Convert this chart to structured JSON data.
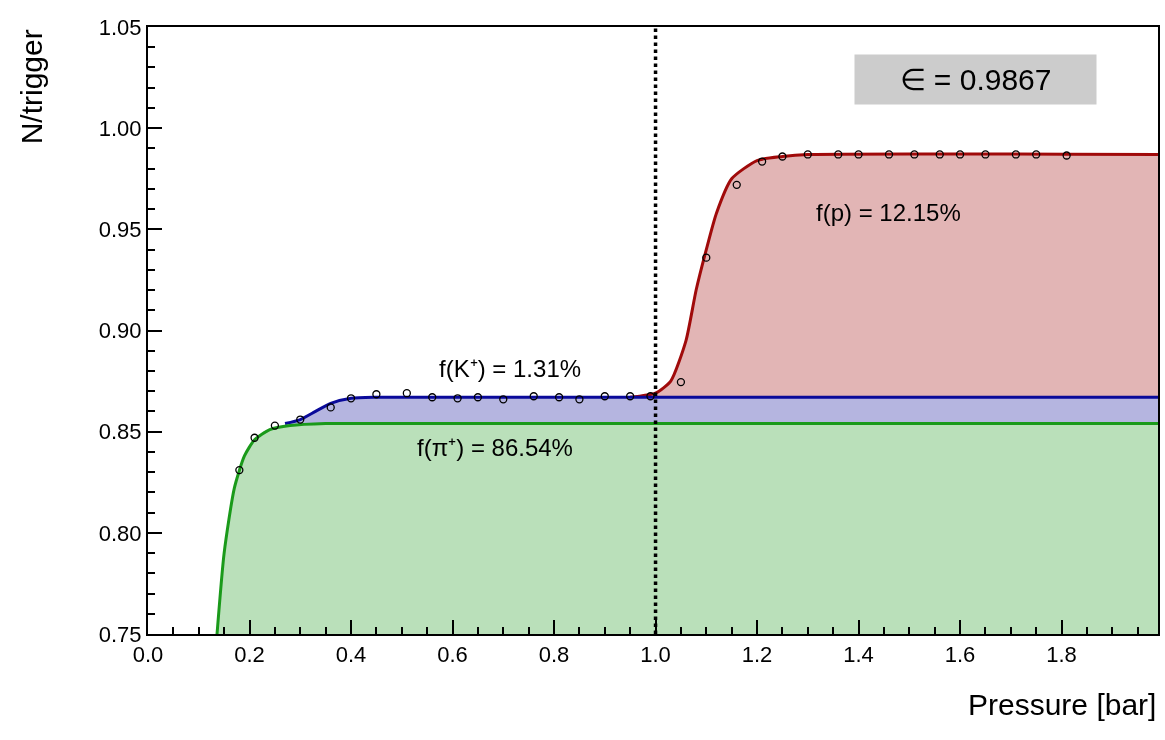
{
  "chart_data": {
    "type": "area",
    "xlabel": "Pressure [bar]",
    "ylabel": "N/trigger",
    "xlim": [
      0,
      1.99
    ],
    "ylim": [
      0.75,
      1.05
    ],
    "xticks": [
      {
        "value": 0,
        "label": "0.0"
      },
      {
        "value": 0.2,
        "label": "0.2"
      },
      {
        "value": 0.4,
        "label": "0.4"
      },
      {
        "value": 0.6,
        "label": "0.6"
      },
      {
        "value": 0.8,
        "label": "0.8"
      },
      {
        "value": 1.0,
        "label": "1.0"
      },
      {
        "value": 1.2,
        "label": "1.2"
      },
      {
        "value": 1.4,
        "label": "1.4"
      },
      {
        "value": 1.6,
        "label": "1.6"
      },
      {
        "value": 1.8,
        "label": "1.8"
      }
    ],
    "yticks": [
      {
        "value": 0.75,
        "label": "0.75"
      },
      {
        "value": 0.8,
        "label": "0.80"
      },
      {
        "value": 0.85,
        "label": "0.85"
      },
      {
        "value": 0.9,
        "label": "0.90"
      },
      {
        "value": 0.95,
        "label": "0.95"
      },
      {
        "value": 1.0,
        "label": "1.00"
      },
      {
        "value": 1.05,
        "label": "1.05"
      }
    ],
    "marker": "none",
    "line_style": "solid",
    "series": [
      {
        "color": "#1a9a1a",
        "x": [
          0.136,
          0.15,
          0.17,
          0.19,
          0.21,
          0.24,
          0.28,
          0.35,
          1.99
        ],
        "values": [
          0.75,
          0.79,
          0.822,
          0.838,
          0.846,
          0.851,
          0.853,
          0.854,
          0.854
        ]
      },
      {
        "color": "#0a0a9a",
        "x": [
          0.27,
          0.3,
          0.33,
          0.36,
          0.4,
          0.45,
          1.99
        ],
        "values": [
          0.854,
          0.856,
          0.86,
          0.864,
          0.8665,
          0.867,
          0.867
        ]
      },
      {
        "color": "#a00a0a",
        "x": [
          0.95,
          1.0,
          1.03,
          1.06,
          1.08,
          1.1,
          1.12,
          1.15,
          1.2,
          1.25,
          1.3,
          1.99
        ],
        "values": [
          0.867,
          0.869,
          0.875,
          0.895,
          0.92,
          0.94,
          0.958,
          0.975,
          0.984,
          0.986,
          0.987,
          0.987
        ]
      },
      {
        "type": "scatter",
        "marker": "circle",
        "color": "#000000",
        "x": [
          0.18,
          0.21,
          0.25,
          0.3,
          0.36,
          0.4,
          0.45,
          0.51,
          0.56,
          0.61,
          0.65,
          0.7,
          0.76,
          0.81,
          0.85,
          0.9,
          0.95,
          0.99,
          1.05,
          1.1,
          1.16,
          1.21,
          1.25,
          1.3,
          1.36,
          1.4,
          1.46,
          1.51,
          1.56,
          1.6,
          1.65,
          1.71,
          1.75,
          1.81
        ],
        "values": [
          0.831,
          0.847,
          0.853,
          0.856,
          0.862,
          0.8665,
          0.8685,
          0.869,
          0.867,
          0.8665,
          0.867,
          0.866,
          0.8675,
          0.867,
          0.866,
          0.8675,
          0.8675,
          0.8675,
          0.8745,
          0.936,
          0.972,
          0.9835,
          0.986,
          0.987,
          0.987,
          0.987,
          0.987,
          0.987,
          0.987,
          0.987,
          0.987,
          0.987,
          0.987,
          0.9865
        ]
      }
    ],
    "ref_lines": [
      {
        "axis": "x",
        "value": 1.0,
        "color": "#000000",
        "line_style": "dotted"
      }
    ],
    "annotations": [
      "f(K⁺) = 1.31%",
      "f(π⁺) = 86.54%",
      "f(p) = 12.15%",
      "∈ = 0.9867"
    ]
  }
}
